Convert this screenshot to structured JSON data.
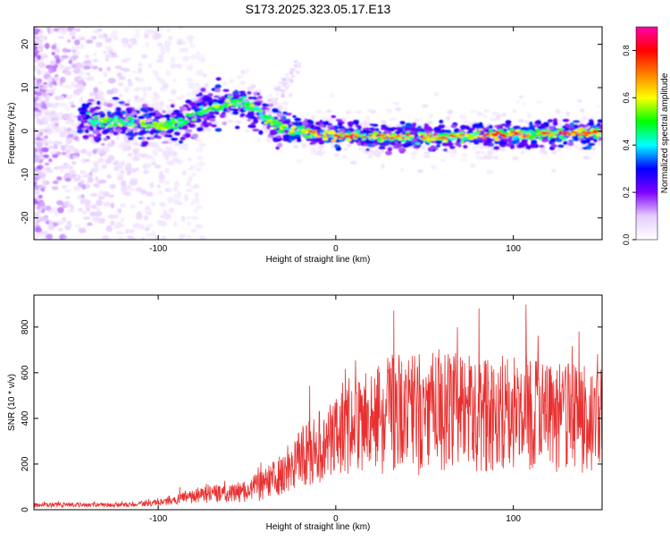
{
  "page": {
    "title": "S173.2025.323.05.17.E13"
  },
  "colors": {
    "snr_line": "#e83030",
    "frame": "#000000"
  },
  "chart_data": [
    {
      "id": "spectrogram",
      "type": "heatmap",
      "title": "S173.2025.323.05.17.E13",
      "xlabel": "Height of straight line (km)",
      "ylabel": "Frequency (Hz)",
      "xlim": [
        -170,
        150
      ],
      "ylim": [
        -25,
        24
      ],
      "xticks": [
        -100,
        0,
        100
      ],
      "xtick_labels": [
        "-100",
        "0",
        "100"
      ],
      "yticks": [
        -20,
        -10,
        0,
        10,
        20
      ],
      "ytick_labels": [
        "-20",
        "-10",
        "0",
        "10",
        "20"
      ],
      "grid": false,
      "signal_track": [
        {
          "x": -135,
          "y": 2.5
        },
        {
          "x": -110,
          "y": 1.8
        },
        {
          "x": -95,
          "y": 1.0
        },
        {
          "x": -85,
          "y": 2.5
        },
        {
          "x": -75,
          "y": 4.5
        },
        {
          "x": -65,
          "y": 6.0
        },
        {
          "x": -55,
          "y": 7.0
        },
        {
          "x": -45,
          "y": 5.0
        },
        {
          "x": -35,
          "y": 1.5
        },
        {
          "x": -25,
          "y": 0.2
        },
        {
          "x": 0,
          "y": -1.0
        },
        {
          "x": 50,
          "y": -1.5
        },
        {
          "x": 100,
          "y": -0.8
        },
        {
          "x": 150,
          "y": -0.3
        }
      ],
      "colorbar": {
        "label": "Normalized spectral amplitude",
        "range": [
          0,
          0.9
        ],
        "ticks": [
          0.0,
          0.2,
          0.4,
          0.6,
          0.8
        ],
        "tick_labels": [
          "0.0",
          "0.2",
          "0.4",
          "0.6",
          "0.8"
        ],
        "colors": [
          "#ffffff",
          "#e6ccff",
          "#8000ff",
          "#0000ff",
          "#00ffff",
          "#00ff00",
          "#ffff00",
          "#ff8000",
          "#ff0000",
          "#ff00aa"
        ]
      }
    },
    {
      "id": "snr",
      "type": "line",
      "xlabel": "Height of straight line (km)",
      "ylabel": "SNR (10 * v/v)",
      "xlim": [
        -170,
        150
      ],
      "ylim": [
        0,
        940
      ],
      "xticks": [
        -100,
        0,
        100
      ],
      "xtick_labels": [
        "-100",
        "0",
        "100"
      ],
      "yticks": [
        0,
        200,
        400,
        600,
        800
      ],
      "ytick_labels": [
        "0",
        "200",
        "400",
        "600",
        "800"
      ],
      "grid": false,
      "series": [
        {
          "envelope": {
            "x": [
              -170,
              -120,
              -100,
              -90,
              -80,
              -70,
              -60,
              -50,
              -40,
              -30,
              -20,
              -10,
              0,
              10,
              20,
              30,
              40,
              50,
              60,
              80,
              100,
              120,
              140,
              150
            ],
            "center": [
              20,
              22,
              30,
              45,
              60,
              70,
              70,
              80,
              110,
              160,
              230,
              270,
              320,
              380,
              400,
              420,
              420,
              430,
              430,
              420,
              430,
              400,
              400,
              400
            ],
            "spread": [
              10,
              10,
              14,
              22,
              30,
              40,
              40,
              50,
              70,
              90,
              130,
              160,
              190,
              220,
              250,
              260,
              270,
              280,
              260,
              260,
              250,
              240,
              240,
              240
            ]
          }
        }
      ]
    }
  ]
}
